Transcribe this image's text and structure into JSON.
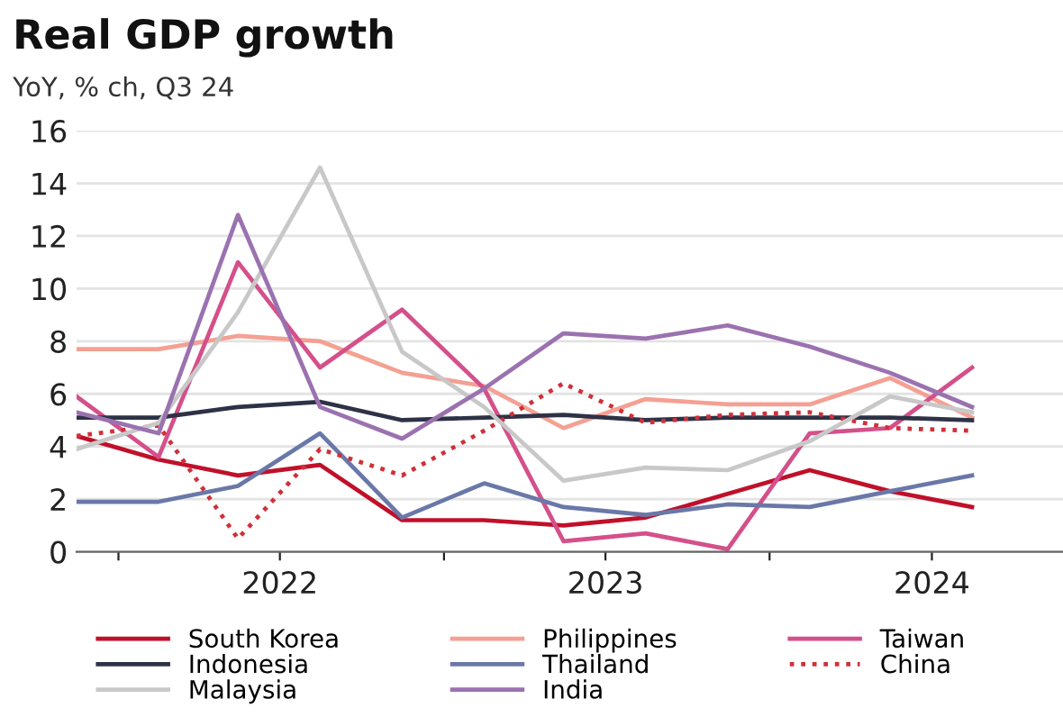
{
  "chart_data": {
    "type": "line",
    "title": "Real GDP growth",
    "subtitle": "YoY, % ch, Q3 24",
    "x": [
      "2021-11-15",
      "2022-02-15",
      "2022-05-15",
      "2022-08-15",
      "2022-11-15",
      "2023-02-15",
      "2023-05-15",
      "2023-08-15",
      "2023-11-15",
      "2024-02-15",
      "2024-05-15",
      "2024-08-15"
    ],
    "xlim": [
      "2021-11-15",
      "2024-11-25"
    ],
    "xticks": [
      {
        "value": "2022-01-01",
        "label": null
      },
      {
        "value": "2023-01-01",
        "label": null
      },
      {
        "value": "2024-01-01",
        "label": null
      },
      {
        "value": "2022-07-01",
        "label": "2022"
      },
      {
        "value": "2023-07-01",
        "label": "2023"
      },
      {
        "value": "2024-07-01",
        "label": "2024"
      }
    ],
    "ylim": [
      0,
      16
    ],
    "yticks": [
      0,
      2,
      4,
      6,
      8,
      10,
      12,
      14,
      16
    ],
    "grid": "y",
    "legend": "bottom",
    "series": [
      {
        "name": "South Korea",
        "color": "#c0102a",
        "values": [
          4.4,
          3.5,
          2.9,
          3.3,
          1.2,
          1.2,
          1.0,
          1.3,
          2.2,
          3.1,
          2.3,
          1.7
        ]
      },
      {
        "name": "Philippines",
        "color": "#f4a093",
        "values": [
          7.7,
          7.7,
          8.2,
          8.0,
          6.8,
          6.3,
          4.7,
          5.8,
          5.6,
          5.6,
          6.6,
          5.1
        ]
      },
      {
        "name": "Taiwan",
        "color": "#d4508a",
        "values": [
          5.9,
          3.6,
          11.0,
          7.0,
          9.2,
          6.2,
          0.4,
          0.7,
          0.1,
          4.5,
          4.7,
          7.0
        ]
      },
      {
        "name": "Indonesia",
        "color": "#2e3246",
        "values": [
          5.1,
          5.1,
          5.5,
          5.7,
          5.0,
          5.1,
          5.2,
          5.0,
          5.1,
          5.1,
          5.1,
          5.0
        ]
      },
      {
        "name": "Thailand",
        "color": "#6a78a8",
        "values": [
          1.9,
          1.9,
          2.5,
          4.5,
          1.3,
          2.6,
          1.7,
          1.4,
          1.8,
          1.7,
          2.3,
          2.9
        ]
      },
      {
        "name": "China",
        "color": "#d0303a",
        "line_style": "dotted",
        "values": [
          4.4,
          4.8,
          0.5,
          3.9,
          2.9,
          4.6,
          6.4,
          4.9,
          5.2,
          5.3,
          4.7,
          4.6
        ]
      },
      {
        "name": "Malaysia",
        "color": "#c8c8c8",
        "values": [
          3.9,
          4.9,
          9.1,
          14.6,
          7.6,
          5.5,
          2.7,
          3.2,
          3.1,
          4.2,
          5.9,
          5.3
        ]
      },
      {
        "name": "India",
        "color": "#9b72b0",
        "values": [
          5.3,
          4.5,
          12.8,
          5.5,
          4.3,
          6.2,
          8.3,
          8.1,
          8.6,
          7.8,
          6.8,
          5.5
        ]
      }
    ]
  }
}
